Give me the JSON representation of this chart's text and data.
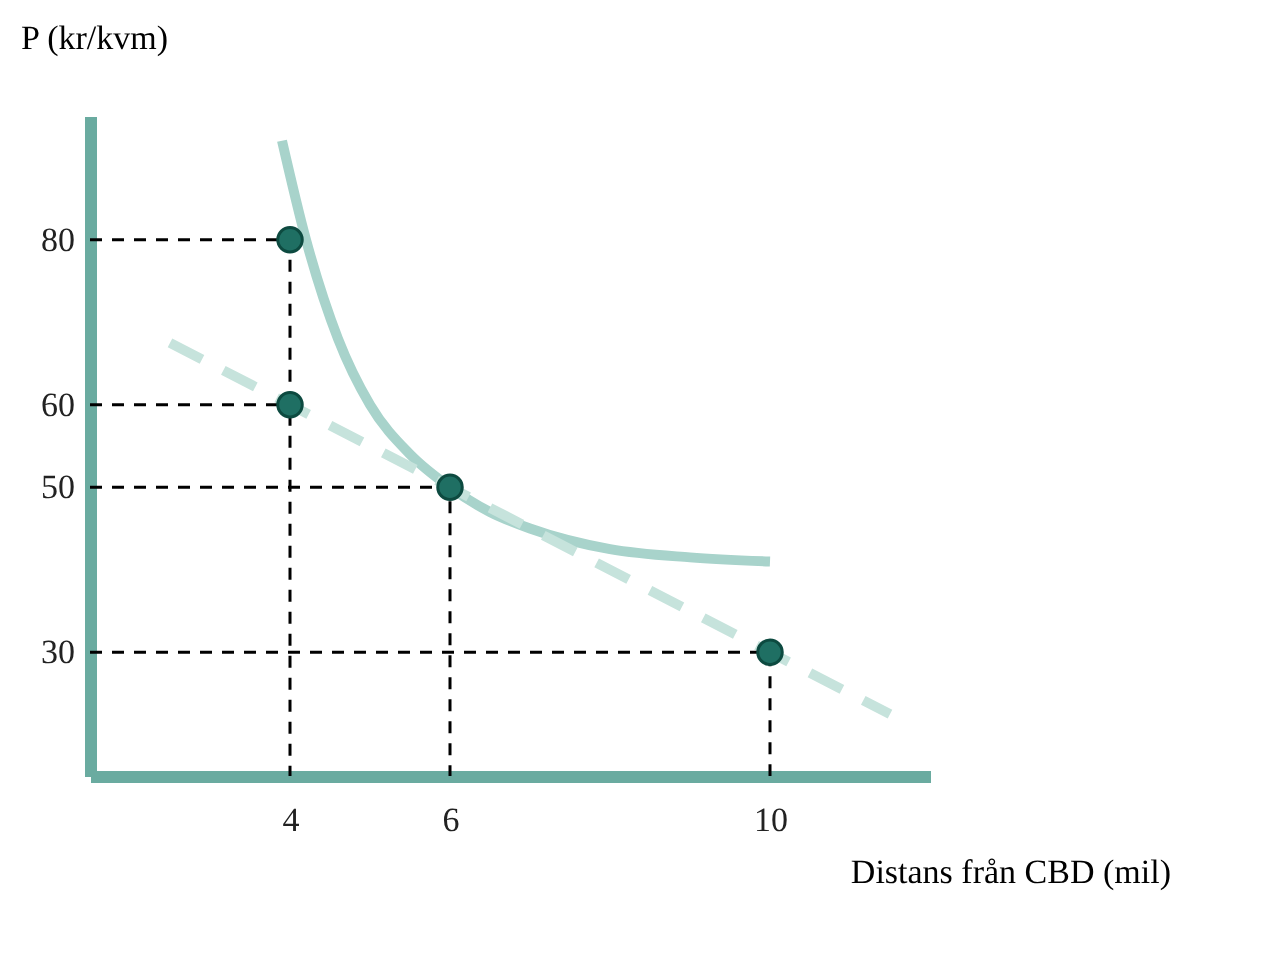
{
  "chart_data": {
    "type": "scatter",
    "xlabel": "Distans från CBD (mil)",
    "ylabel": "P (kr/kvm)",
    "xlim": [
      1.5,
      12
    ],
    "ylim": [
      15,
      95
    ],
    "xticks": [
      4,
      6,
      10
    ],
    "yticks": [
      30,
      50,
      60,
      80
    ],
    "marker": "circle",
    "series": [
      {
        "type": "line",
        "color": "#a8d3cb",
        "line_style": "solid",
        "marker": "none",
        "x": [
          3.9,
          4.2,
          4.6,
          5,
          5.5,
          6,
          6.5,
          7,
          8,
          9,
          10
        ],
        "values": [
          92,
          80,
          68,
          60,
          54,
          50,
          47,
          45,
          42.5,
          41.5,
          41
        ]
      },
      {
        "type": "line",
        "color": "#c6e3dc",
        "line_style": "dashed",
        "marker": "none",
        "x": [
          2.5,
          11.5
        ],
        "values": [
          67.5,
          22.5
        ]
      },
      {
        "type": "line",
        "color": "#000000",
        "line_style": "dotted",
        "marker": "none",
        "x": [
          1.5,
          4,
          4
        ],
        "values": [
          80,
          80,
          15
        ]
      },
      {
        "type": "line",
        "color": "#000000",
        "line_style": "dotted",
        "marker": "none",
        "x": [
          1.5,
          4
        ],
        "values": [
          60,
          60
        ]
      },
      {
        "type": "line",
        "color": "#000000",
        "line_style": "dotted",
        "marker": "none",
        "x": [
          1.5,
          6,
          6
        ],
        "values": [
          50,
          50,
          15
        ]
      },
      {
        "type": "line",
        "color": "#000000",
        "line_style": "dotted",
        "marker": "none",
        "x": [
          1.5,
          10,
          10
        ],
        "values": [
          30,
          30,
          15
        ]
      },
      {
        "color": "#1f6f63",
        "x": [
          4,
          4,
          6,
          10
        ],
        "values": [
          80,
          60,
          50,
          30
        ]
      }
    ]
  }
}
